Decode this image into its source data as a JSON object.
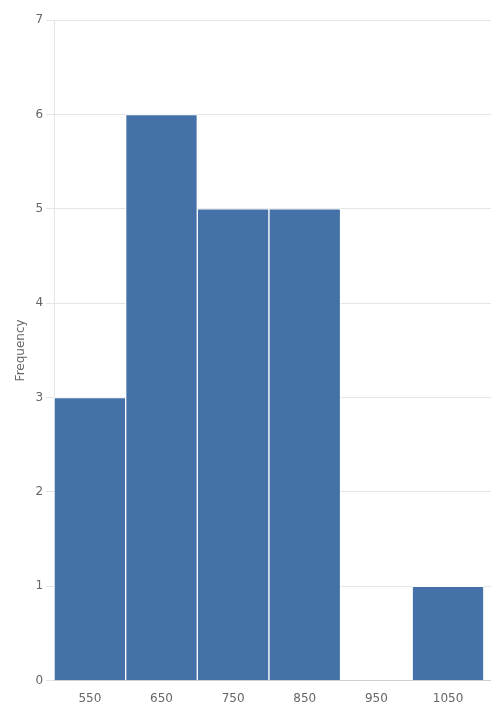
{
  "chart_data": {
    "type": "histogram",
    "bins": [
      500,
      600,
      700,
      800,
      900,
      1000,
      1100
    ],
    "values": [
      3,
      6,
      5,
      5,
      0,
      1
    ],
    "color": "#4472A8",
    "ylabel": "Frequency",
    "xlim": [
      500,
      1110
    ],
    "xticks": [
      550,
      650,
      750,
      850,
      950,
      1050
    ],
    "ylim": [
      0,
      7
    ],
    "yticks": [
      0,
      1,
      2,
      3,
      4,
      5,
      6,
      7
    ],
    "grid": "y"
  }
}
